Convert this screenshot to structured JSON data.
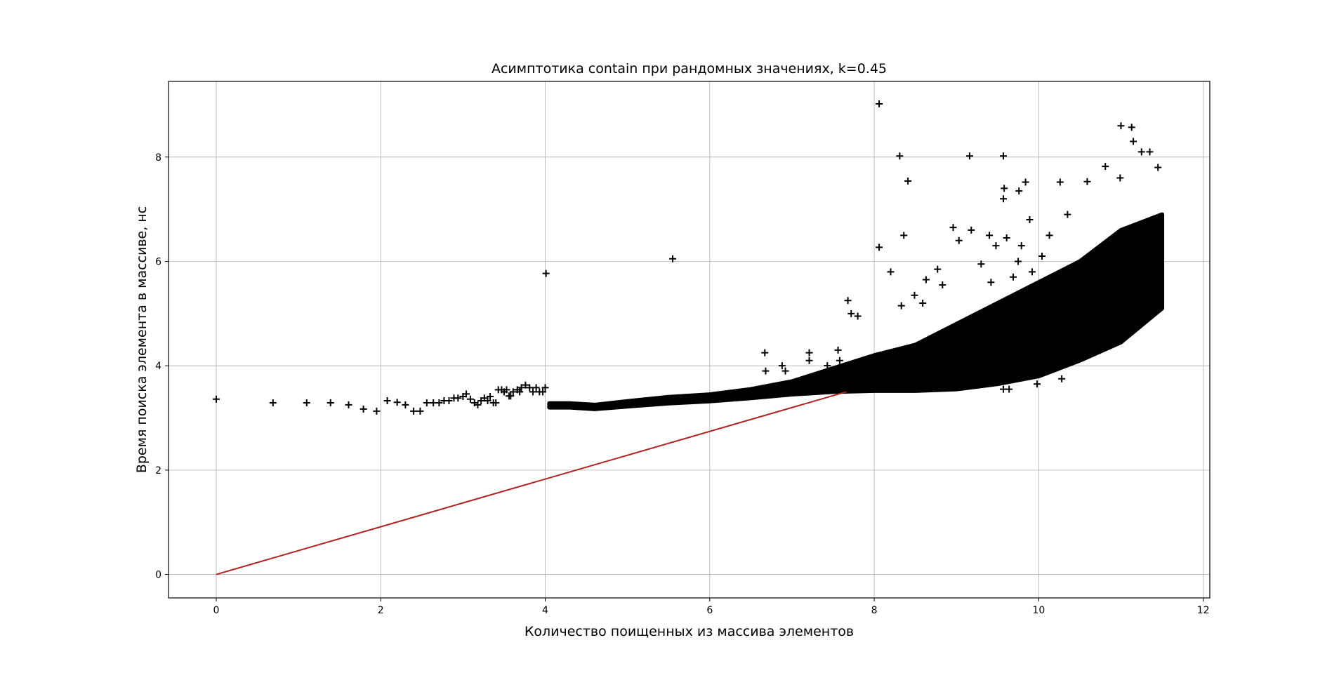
{
  "chart_data": {
    "type": "scatter",
    "title": "Асимптотика contain при рандомных значениях, k=0.45",
    "xlabel": "Количество поищенных из массива элементов",
    "ylabel": "Время поиска элемента в массиве, нс",
    "xlim": [
      -0.58,
      12.08
    ],
    "ylim": [
      -0.45,
      9.45
    ],
    "x_ticks": [
      0,
      2,
      4,
      6,
      8,
      10,
      12
    ],
    "y_ticks": [
      0,
      2,
      4,
      6,
      8
    ],
    "grid": true,
    "marker": "+",
    "marker_color": "#000000",
    "line_color": "#b22222",
    "series": [
      {
        "kind": "scatter",
        "points": [
          [
            0.0,
            3.36
          ],
          [
            0.69,
            3.29
          ],
          [
            1.1,
            3.29
          ],
          [
            1.39,
            3.29
          ],
          [
            1.61,
            3.25
          ],
          [
            1.79,
            3.17
          ],
          [
            1.95,
            3.13
          ],
          [
            2.08,
            3.33
          ],
          [
            2.2,
            3.3
          ],
          [
            2.3,
            3.25
          ],
          [
            2.4,
            3.13
          ],
          [
            2.48,
            3.13
          ],
          [
            2.56,
            3.29
          ],
          [
            2.64,
            3.29
          ],
          [
            2.71,
            3.29
          ],
          [
            2.77,
            3.33
          ],
          [
            2.83,
            3.33
          ],
          [
            2.89,
            3.38
          ],
          [
            2.94,
            3.38
          ],
          [
            3.0,
            3.41
          ],
          [
            3.04,
            3.46
          ],
          [
            3.09,
            3.36
          ],
          [
            3.14,
            3.29
          ],
          [
            3.18,
            3.25
          ],
          [
            3.22,
            3.33
          ],
          [
            3.26,
            3.38
          ],
          [
            3.3,
            3.33
          ],
          [
            3.33,
            3.41
          ],
          [
            3.37,
            3.29
          ],
          [
            3.4,
            3.29
          ],
          [
            3.43,
            3.54
          ],
          [
            3.47,
            3.54
          ],
          [
            3.5,
            3.5
          ],
          [
            3.53,
            3.54
          ],
          [
            3.56,
            3.42
          ],
          [
            3.58,
            3.42
          ],
          [
            3.61,
            3.5
          ],
          [
            3.66,
            3.54
          ],
          [
            3.69,
            3.5
          ],
          [
            3.71,
            3.58
          ],
          [
            3.76,
            3.63
          ],
          [
            3.81,
            3.58
          ],
          [
            3.85,
            3.5
          ],
          [
            3.89,
            3.58
          ],
          [
            3.93,
            3.5
          ],
          [
            3.97,
            3.5
          ],
          [
            4.01,
            5.77
          ],
          [
            4.0,
            3.58
          ],
          [
            5.55,
            6.05
          ],
          [
            8.06,
            9.02
          ],
          [
            8.06,
            6.27
          ],
          [
            8.31,
            8.02
          ],
          [
            8.41,
            7.54
          ],
          [
            9.16,
            8.02
          ],
          [
            9.57,
            8.02
          ],
          [
            9.58,
            7.4
          ],
          [
            9.57,
            7.2
          ],
          [
            9.76,
            7.35
          ],
          [
            9.84,
            7.52
          ],
          [
            10.26,
            7.52
          ],
          [
            10.59,
            7.53
          ],
          [
            10.81,
            7.82
          ],
          [
            11.0,
            8.6
          ],
          [
            11.13,
            8.57
          ],
          [
            11.15,
            8.3
          ],
          [
            11.25,
            8.1
          ],
          [
            11.35,
            8.1
          ],
          [
            11.45,
            7.8
          ],
          [
            10.99,
            7.6
          ],
          [
            7.68,
            5.25
          ],
          [
            7.72,
            5.0
          ],
          [
            7.8,
            4.95
          ],
          [
            8.2,
            5.8
          ],
          [
            8.36,
            6.5
          ],
          [
            8.63,
            5.65
          ],
          [
            8.77,
            5.85
          ],
          [
            8.96,
            6.65
          ],
          [
            9.03,
            6.4
          ],
          [
            9.18,
            6.6
          ],
          [
            9.4,
            6.5
          ],
          [
            9.48,
            6.3
          ],
          [
            9.61,
            6.45
          ],
          [
            9.75,
            6.0
          ],
          [
            9.79,
            6.3
          ],
          [
            9.89,
            6.8
          ],
          [
            10.04,
            6.1
          ],
          [
            10.13,
            6.5
          ],
          [
            10.35,
            6.9
          ],
          [
            9.3,
            5.95
          ],
          [
            8.83,
            5.55
          ],
          [
            8.59,
            5.2
          ],
          [
            8.33,
            5.15
          ],
          [
            8.49,
            5.35
          ],
          [
            9.42,
            5.6
          ],
          [
            9.69,
            5.7
          ],
          [
            9.92,
            5.8
          ],
          [
            10.22,
            5.6
          ],
          [
            6.67,
            4.25
          ],
          [
            6.68,
            3.9
          ],
          [
            6.88,
            4.0
          ],
          [
            6.92,
            3.9
          ],
          [
            7.21,
            4.25
          ],
          [
            7.21,
            4.1
          ],
          [
            7.43,
            4.0
          ],
          [
            7.44,
            3.9
          ],
          [
            7.58,
            4.1
          ],
          [
            7.56,
            4.3
          ],
          [
            10.28,
            3.75
          ],
          [
            9.57,
            3.55
          ],
          [
            9.64,
            3.55
          ],
          [
            9.98,
            3.65
          ]
        ]
      },
      {
        "kind": "band",
        "description": "dense cloud lower/upper envelope",
        "lower": [
          [
            4.05,
            3.2
          ],
          [
            4.3,
            3.2
          ],
          [
            4.6,
            3.17
          ],
          [
            5.0,
            3.22
          ],
          [
            5.5,
            3.28
          ],
          [
            6.0,
            3.32
          ],
          [
            6.5,
            3.38
          ],
          [
            7.0,
            3.45
          ],
          [
            7.5,
            3.5
          ],
          [
            8.0,
            3.52
          ],
          [
            8.5,
            3.52
          ],
          [
            9.0,
            3.55
          ],
          [
            9.5,
            3.65
          ],
          [
            10.0,
            3.8
          ],
          [
            10.5,
            4.1
          ],
          [
            11.0,
            4.45
          ],
          [
            11.5,
            5.1
          ]
        ],
        "upper": [
          [
            4.05,
            3.28
          ],
          [
            4.3,
            3.28
          ],
          [
            4.6,
            3.25
          ],
          [
            5.0,
            3.32
          ],
          [
            5.5,
            3.4
          ],
          [
            6.0,
            3.45
          ],
          [
            6.5,
            3.55
          ],
          [
            7.0,
            3.7
          ],
          [
            7.5,
            3.95
          ],
          [
            8.0,
            4.2
          ],
          [
            8.5,
            4.4
          ],
          [
            9.0,
            4.8
          ],
          [
            9.5,
            5.2
          ],
          [
            10.0,
            5.6
          ],
          [
            10.5,
            6.0
          ],
          [
            11.0,
            6.6
          ],
          [
            11.5,
            6.9
          ]
        ]
      },
      {
        "kind": "line",
        "points": [
          [
            0,
            0
          ],
          [
            7.66,
            3.5
          ]
        ]
      }
    ]
  }
}
